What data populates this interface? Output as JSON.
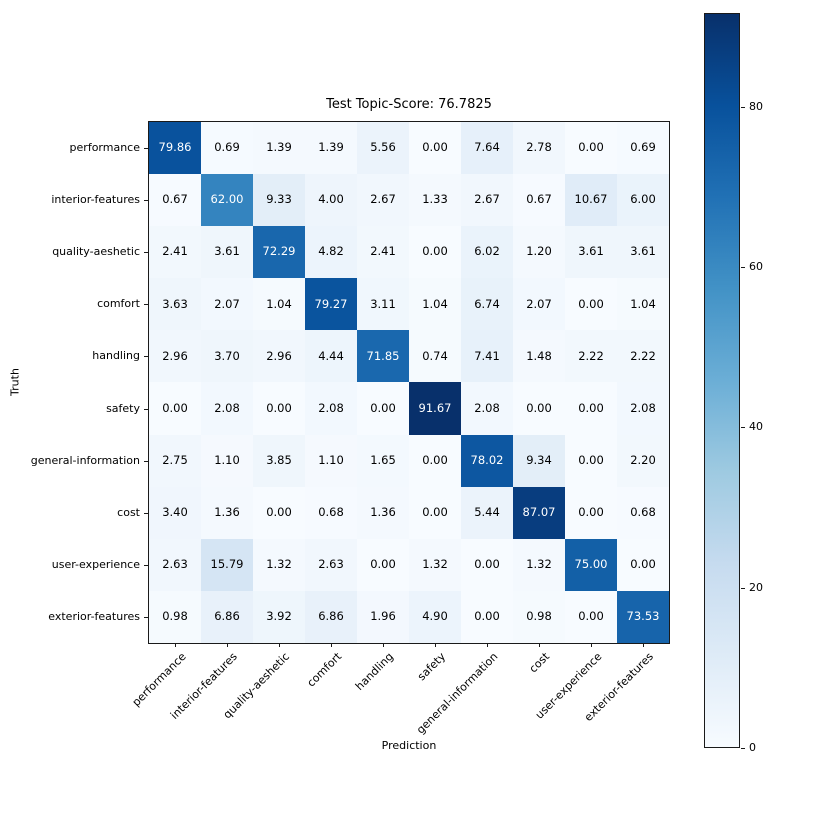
{
  "chart_data": {
    "type": "heatmap",
    "title": "Test Topic-Score: 76.7825",
    "xlabel": "Prediction",
    "ylabel": "Truth",
    "x_categories": [
      "performance",
      "interior-features",
      "quality-aeshetic",
      "comfort",
      "handling",
      "safety",
      "general-information",
      "cost",
      "user-experience",
      "exterior-features"
    ],
    "y_categories": [
      "performance",
      "interior-features",
      "quality-aeshetic",
      "comfort",
      "handling",
      "safety",
      "general-information",
      "cost",
      "user-experience",
      "exterior-features"
    ],
    "matrix": [
      [
        79.86,
        0.69,
        1.39,
        1.39,
        5.56,
        0.0,
        7.64,
        2.78,
        0.0,
        0.69
      ],
      [
        0.67,
        62.0,
        9.33,
        4.0,
        2.67,
        1.33,
        2.67,
        0.67,
        10.67,
        6.0
      ],
      [
        2.41,
        3.61,
        72.29,
        4.82,
        2.41,
        0.0,
        6.02,
        1.2,
        3.61,
        3.61
      ],
      [
        3.63,
        2.07,
        1.04,
        79.27,
        3.11,
        1.04,
        6.74,
        2.07,
        0.0,
        1.04
      ],
      [
        2.96,
        3.7,
        2.96,
        4.44,
        71.85,
        0.74,
        7.41,
        1.48,
        2.22,
        2.22
      ],
      [
        0.0,
        2.08,
        0.0,
        2.08,
        0.0,
        91.67,
        2.08,
        0.0,
        0.0,
        2.08
      ],
      [
        2.75,
        1.1,
        3.85,
        1.1,
        1.65,
        0.0,
        78.02,
        9.34,
        0.0,
        2.2
      ],
      [
        3.4,
        1.36,
        0.0,
        0.68,
        1.36,
        0.0,
        5.44,
        87.07,
        0.0,
        0.68
      ],
      [
        2.63,
        15.79,
        1.32,
        2.63,
        0.0,
        1.32,
        0.0,
        1.32,
        75.0,
        0.0
      ],
      [
        0.98,
        6.86,
        3.92,
        6.86,
        1.96,
        4.9,
        0.0,
        0.98,
        0.0,
        73.53
      ]
    ],
    "value_decimals": 2,
    "colormap": "Blues",
    "colormap_stops": [
      [
        0.0,
        "#f7fbff"
      ],
      [
        0.125,
        "#deebf7"
      ],
      [
        0.25,
        "#c6dbef"
      ],
      [
        0.375,
        "#9ecae1"
      ],
      [
        0.5,
        "#6baed6"
      ],
      [
        0.625,
        "#4292c6"
      ],
      [
        0.75,
        "#2171b5"
      ],
      [
        0.875,
        "#08519c"
      ],
      [
        1.0,
        "#08306b"
      ]
    ],
    "vmin": 0,
    "vmax": 91.67,
    "colorbar_ticks": [
      0,
      20,
      40,
      60,
      80
    ],
    "cell_text_light": "#ffffff",
    "cell_text_dark": "#000000",
    "legend_position": "right",
    "grid": false
  }
}
